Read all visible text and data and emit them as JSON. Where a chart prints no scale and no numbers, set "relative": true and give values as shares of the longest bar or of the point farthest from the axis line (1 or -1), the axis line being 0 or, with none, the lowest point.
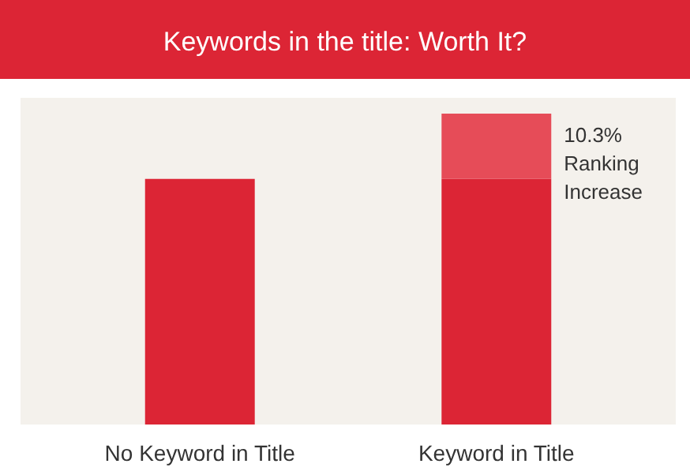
{
  "chart_data": {
    "type": "bar",
    "title": "Keywords in the title: Worth It?",
    "categories": [
      "No Keyword in Title",
      "Keyword in Title"
    ],
    "relative": true,
    "stacked": true,
    "series": [
      {
        "color": "#dc2535",
        "values": [
          0.79,
          0.79
        ]
      },
      {
        "color": "#e64c58",
        "values": [
          null,
          0.21
        ]
      }
    ],
    "annotations": [
      "10.3% Ranking Increase"
    ]
  }
}
